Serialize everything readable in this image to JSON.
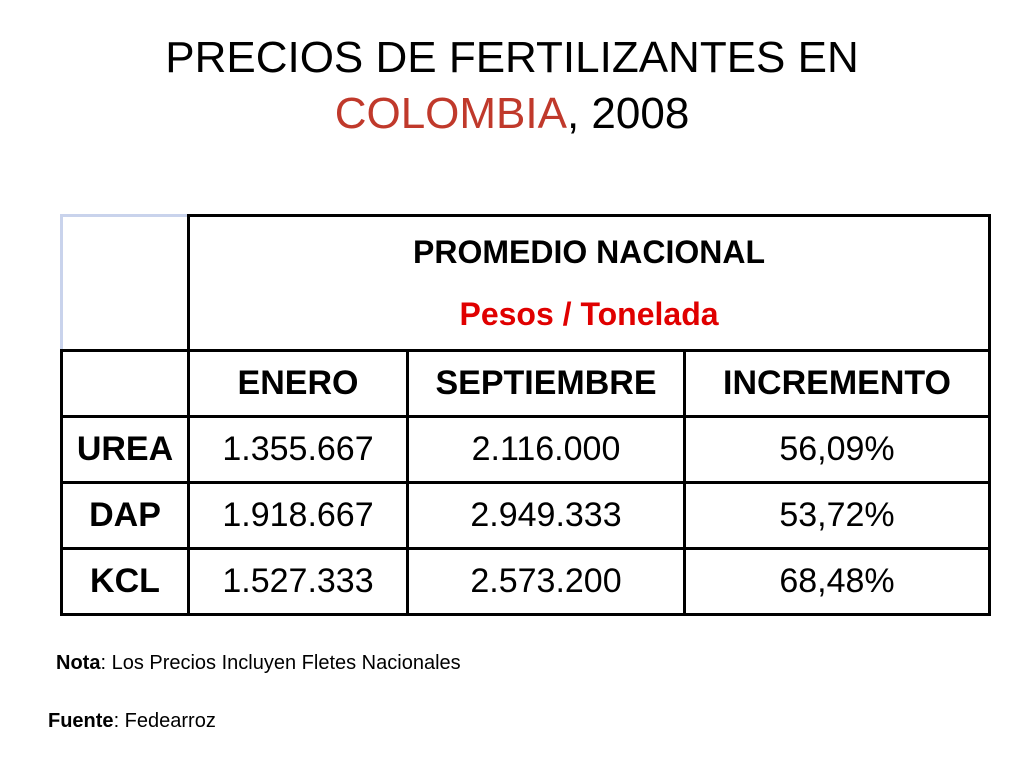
{
  "title": {
    "line1": "PRECIOS DE FERTILIZANTES EN",
    "accent": "COLOMBIA",
    "rest": ", 2008"
  },
  "table": {
    "header_main": "PROMEDIO NACIONAL",
    "header_sub": "Pesos / Tonelada",
    "columns": [
      "ENERO",
      "SEPTIEMBRE",
      "INCREMENTO"
    ],
    "rows": [
      {
        "name": "UREA",
        "values": [
          "1.355.667",
          "2.116.000",
          "56,09%"
        ]
      },
      {
        "name": "DAP",
        "values": [
          "1.918.667",
          "2.949.333",
          "53,72%"
        ]
      },
      {
        "name": "KCL",
        "values": [
          "1.527.333",
          "2.573.200",
          "68,48%"
        ]
      }
    ]
  },
  "note": {
    "label": "Nota",
    "text": ": Los Precios Incluyen Fletes Nacionales"
  },
  "source": {
    "label": "Fuente",
    "text": ": Fedearroz"
  },
  "colors": {
    "accent": "#c0392b",
    "sub_header": "#e00000",
    "corner_border": "#c9d3ec"
  }
}
